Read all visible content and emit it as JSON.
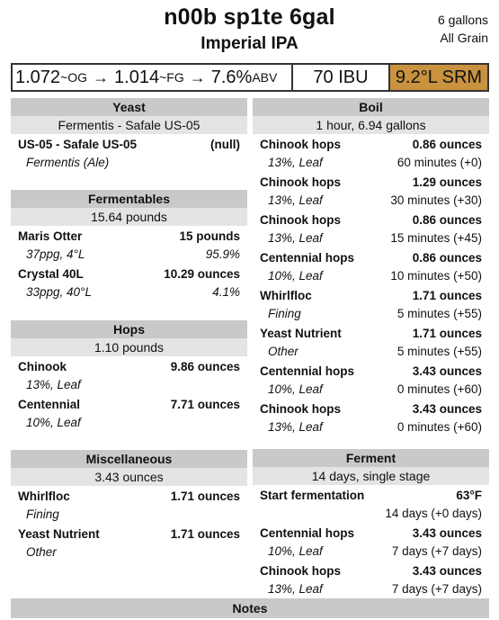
{
  "recipe": {
    "name": "n00b sp1te 6gal",
    "style": "Imperial IPA",
    "volume": "6 gallons",
    "method": "All Grain"
  },
  "stats": {
    "og": "1.072",
    "og_unit": "~OG",
    "arrow": "→",
    "fg": "1.014",
    "fg_unit": "~FG",
    "abv": "7.6%",
    "abv_unit": "ABV",
    "ibu": "70 IBU",
    "srm": "9.2°L SRM",
    "srm_color": "#c8923f"
  },
  "yeast": {
    "header": "Yeast",
    "sub": "Fermentis - Safale US-05",
    "items": [
      {
        "name": "US-05 - Safale US-05",
        "amount": "(null)",
        "detail": "Fermentis (Ale)",
        "extra": ""
      }
    ]
  },
  "fermentables": {
    "header": "Fermentables",
    "sub": "15.64 pounds",
    "items": [
      {
        "name": "Maris Otter",
        "amount": "15 pounds",
        "detail": "37ppg, 4°L",
        "extra": "95.9%"
      },
      {
        "name": "Crystal 40L",
        "amount": "10.29 ounces",
        "detail": "33ppg, 40°L",
        "extra": "4.1%"
      }
    ]
  },
  "hops": {
    "header": "Hops",
    "sub": "1.10 pounds",
    "items": [
      {
        "name": "Chinook",
        "amount": "9.86 ounces",
        "detail": "13%, Leaf",
        "extra": ""
      },
      {
        "name": "Centennial",
        "amount": "7.71 ounces",
        "detail": "10%, Leaf",
        "extra": ""
      }
    ]
  },
  "misc": {
    "header": "Miscellaneous",
    "sub": "3.43 ounces",
    "items": [
      {
        "name": "Whirlfloc",
        "amount": "1.71 ounces",
        "detail": "Fining",
        "extra": ""
      },
      {
        "name": "Yeast Nutrient",
        "amount": "1.71 ounces",
        "detail": "Other",
        "extra": ""
      }
    ]
  },
  "boil": {
    "header": "Boil",
    "sub": "1 hour, 6.94 gallons",
    "items": [
      {
        "name": "Chinook hops",
        "amount": "0.86 ounces",
        "detail": "13%, Leaf",
        "extra": "60 minutes (+0)"
      },
      {
        "name": "Chinook hops",
        "amount": "1.29 ounces",
        "detail": "13%, Leaf",
        "extra": "30 minutes (+30)"
      },
      {
        "name": "Chinook hops",
        "amount": "0.86 ounces",
        "detail": "13%, Leaf",
        "extra": "15 minutes (+45)"
      },
      {
        "name": "Centennial hops",
        "amount": "0.86 ounces",
        "detail": "10%, Leaf",
        "extra": "10 minutes (+50)"
      },
      {
        "name": "Whirlfloc",
        "amount": "1.71 ounces",
        "detail": "Fining",
        "extra": "5 minutes (+55)"
      },
      {
        "name": "Yeast Nutrient",
        "amount": "1.71 ounces",
        "detail": "Other",
        "extra": "5 minutes (+55)"
      },
      {
        "name": "Centennial hops",
        "amount": "3.43 ounces",
        "detail": "10%, Leaf",
        "extra": "0 minutes (+60)"
      },
      {
        "name": "Chinook hops",
        "amount": "3.43 ounces",
        "detail": "13%, Leaf",
        "extra": "0 minutes (+60)"
      }
    ]
  },
  "ferment": {
    "header": "Ferment",
    "sub": "14 days, single stage",
    "items": [
      {
        "name": "Start fermentation",
        "amount": "63°F",
        "detail": "",
        "extra": "14 days (+0 days)"
      },
      {
        "name": "Centennial hops",
        "amount": "3.43 ounces",
        "detail": "10%, Leaf",
        "extra": "7 days (+7 days)"
      },
      {
        "name": "Chinook hops",
        "amount": "3.43 ounces",
        "detail": "13%, Leaf",
        "extra": "7 days (+7 days)"
      }
    ]
  },
  "notes": {
    "header": "Notes"
  }
}
